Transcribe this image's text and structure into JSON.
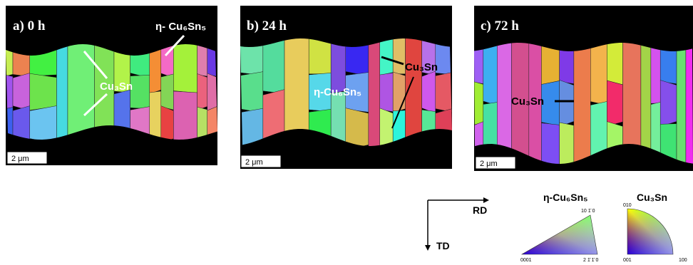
{
  "panels": [
    {
      "label": "a) 0 h",
      "annotations": [
        "η- Cu₆Sn₅",
        "Cu₃Sn"
      ],
      "scale_bar": "2 μm"
    },
    {
      "label": "b) 24 h",
      "annotations": [
        "η-Cu₆Sn₅",
        "Cu₃Sn"
      ],
      "scale_bar": "2 μm"
    },
    {
      "label": "c) 72 h",
      "annotations": [
        "Cu₃Sn"
      ],
      "scale_bar": "2 μm"
    }
  ],
  "axes": {
    "x": "RD",
    "y": "TD"
  },
  "legend": [
    {
      "title": "η-Cu₆Sn₅",
      "corners": [
        "10 1̄ 0",
        "0001",
        "2 1̄ 1̄ 0"
      ]
    },
    {
      "title": "Cu₃Sn",
      "corners": [
        "010",
        "001",
        "100"
      ]
    }
  ]
}
